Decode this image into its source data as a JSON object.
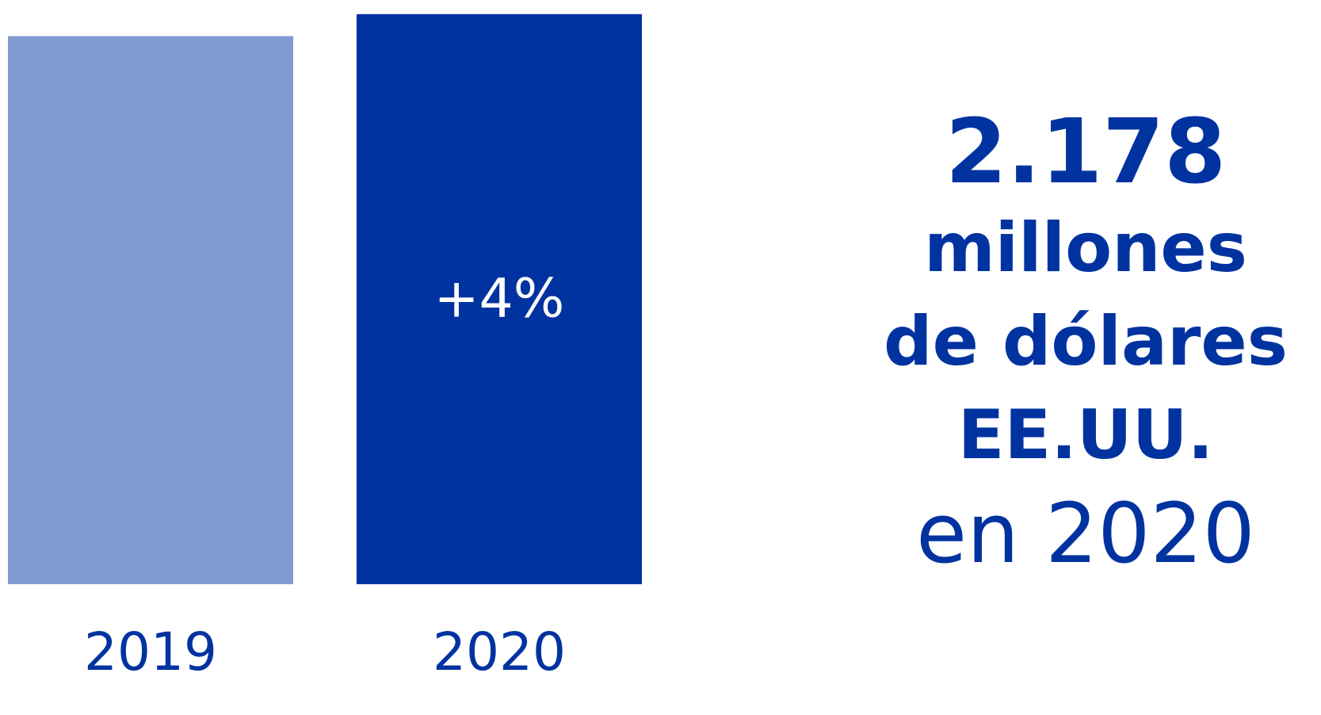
{
  "chart_data": {
    "type": "bar",
    "categories": [
      "2019",
      "2020"
    ],
    "values": [
      2094,
      2178
    ],
    "ylim": [
      0,
      2232
    ],
    "grid": false,
    "legend": "none",
    "bar_colors": [
      "#819CD1",
      "#0033A0"
    ],
    "annotation": "+4%"
  },
  "callout": {
    "value": "2.178",
    "line1": "millones",
    "line2": "de dólares",
    "line3": "EE.UU.",
    "line4_prefix": "en ",
    "line4_year": "2020"
  },
  "colors": {
    "accent": "#0033A0",
    "light_bar": "#819CD1",
    "annotation_text": "#FFFFFF"
  }
}
